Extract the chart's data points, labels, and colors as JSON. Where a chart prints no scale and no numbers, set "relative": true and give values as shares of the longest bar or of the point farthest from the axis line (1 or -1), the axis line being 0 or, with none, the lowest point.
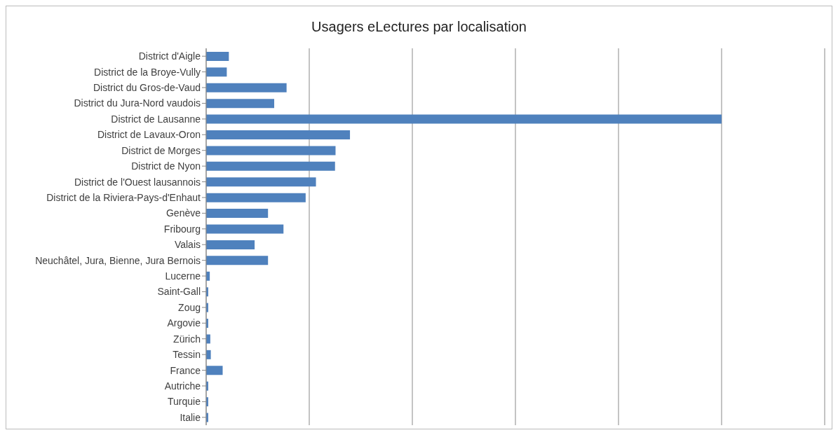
{
  "chart_data": {
    "type": "bar",
    "title": "Usagers eLectures par localisation",
    "orientation": "horizontal",
    "relative": true,
    "grid": "x",
    "legend": false,
    "categories": [
      "District d'Aigle",
      "District de la Broye-Vully",
      "District du Gros-de-Vaud",
      "District du Jura-Nord vaudois",
      "District de Lausanne",
      "District de Lavaux-Oron",
      "District de Morges",
      "District de Nyon",
      "District de l'Ouest lausannois",
      "District de la Riviera-Pays-d'Enhaut",
      "Genève",
      "Fribourg",
      "Valais",
      "Neuchâtel, Jura, Bienne, Jura Bernois",
      "Lucerne",
      "Saint-Gall",
      "Zoug",
      "Argovie",
      "Zürich",
      "Tessin",
      "France",
      "Autriche",
      "Turquie",
      "Italie"
    ],
    "series": [
      {
        "color": "#4f81bd",
        "values": [
          0.044,
          0.04,
          0.156,
          0.132,
          1,
          0.279,
          0.251,
          0.25,
          0.213,
          0.193,
          0.12,
          0.15,
          0.094,
          0.12,
          0.007,
          0.004,
          0.004,
          0.004,
          0.008,
          0.009,
          0.032,
          0.004,
          0.004,
          0.004
        ]
      }
    ]
  }
}
